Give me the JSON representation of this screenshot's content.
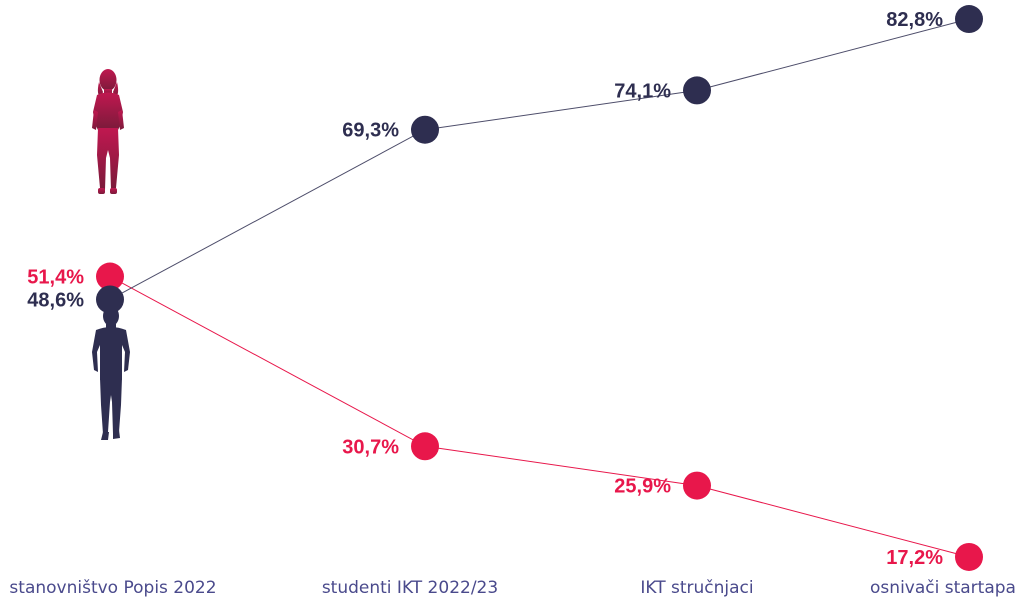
{
  "chart_data": {
    "type": "line",
    "categories": [
      "stanovništvo Popis 2022",
      "studenti IKT 2022/23",
      "IKT stručnjaci",
      "osnivači startapa"
    ],
    "series": [
      {
        "key": "female",
        "values": [
          51.4,
          30.7,
          25.9,
          17.2
        ],
        "labels": [
          "51,4%",
          "30,7%",
          "25,9%",
          "17,2%"
        ],
        "color": "#e8174b",
        "icon": "woman-silhouette-icon"
      },
      {
        "key": "male",
        "values": [
          48.6,
          69.3,
          74.1,
          82.8
        ],
        "labels": [
          "48,6%",
          "69,3%",
          "74,1%",
          "82,8%"
        ],
        "color": "#2e2e50",
        "icon": "man-silhouette-icon"
      }
    ],
    "ylim": [
      0,
      100
    ],
    "grid": false,
    "legend": "none"
  },
  "colors": {
    "female": "#e8174b",
    "male": "#2e2e50",
    "category_text": "#4a4a8c",
    "female_icon_top": "#c01850",
    "female_icon_bottom": "#7a1a3a"
  }
}
